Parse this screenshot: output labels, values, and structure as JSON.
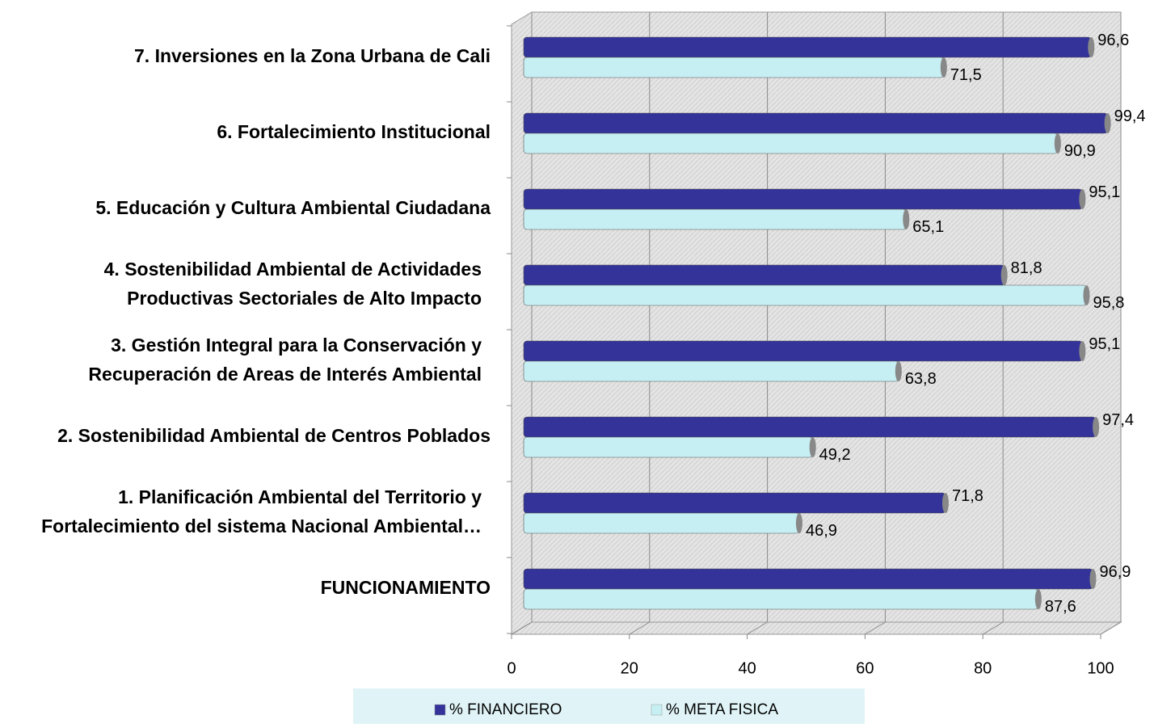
{
  "chart_data": {
    "type": "bar",
    "orientation": "horizontal",
    "categories": [
      "FUNCIONAMIENTO",
      "1. Planificación Ambiental del Territorio y\nFortalecimiento del sistema Nacional Ambiental…",
      "2. Sostenibilidad Ambiental de Centros Poblados",
      "3. Gestión Integral para la Conservación y\nRecuperación de Areas de Interés Ambiental",
      "4. Sostenibilidad Ambiental de Actividades\nProductivas Sectoriales de Alto Impacto",
      "5. Educación y Cultura Ambiental Ciudadana",
      "6. Fortalecimiento Institucional",
      "7. Inversiones en la Zona Urbana de Cali"
    ],
    "series": [
      {
        "name": "% FINANCIERO",
        "color": "#333399",
        "values": [
          96.9,
          71.8,
          97.4,
          95.1,
          81.8,
          95.1,
          99.4,
          96.6
        ],
        "value_labels": [
          "96,9",
          "71,8",
          "97,4",
          "95,1",
          "81,8",
          "95,1",
          "99,4",
          "96,6"
        ]
      },
      {
        "name": "% META FISICA",
        "color": "#c6eff3",
        "values": [
          87.6,
          46.9,
          49.2,
          63.8,
          95.8,
          65.1,
          90.9,
          71.5
        ],
        "value_labels": [
          "87,6",
          "46,9",
          "49,2",
          "63,8",
          "95,8",
          "65,1",
          "90,9",
          "71,5"
        ]
      }
    ],
    "xlim": [
      0,
      100
    ],
    "xticks": [
      0,
      20,
      40,
      60,
      80,
      100
    ],
    "grid": true,
    "legend": "bottom"
  }
}
